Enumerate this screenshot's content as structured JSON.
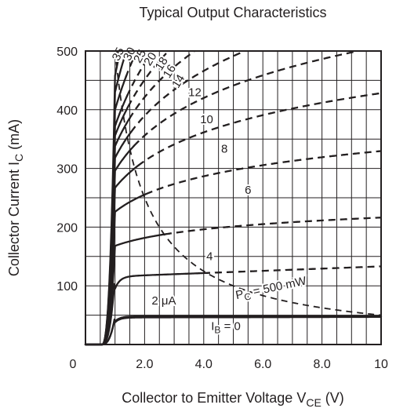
{
  "chart_data": {
    "type": "line",
    "title": "Typical Output Characteristics",
    "xlabel": {
      "main": "Collector to Emitter Voltage  V",
      "sub": "CE",
      "unit": "  (V)"
    },
    "ylabel": {
      "main": "Collector Current  I",
      "sub": "C",
      "unit": "  (mA)"
    },
    "xlim": [
      0,
      10
    ],
    "ylim": [
      0,
      500
    ],
    "x_ticks": [
      {
        "v": 0,
        "label": "0"
      },
      {
        "v": 2,
        "label": "2.0"
      },
      {
        "v": 4,
        "label": "4.0"
      },
      {
        "v": 6,
        "label": "6.0"
      },
      {
        "v": 8,
        "label": "8.0"
      },
      {
        "v": 10,
        "label": "10"
      }
    ],
    "y_ticks": [
      {
        "v": 100,
        "label": "100"
      },
      {
        "v": 200,
        "label": "200"
      },
      {
        "v": 300,
        "label": "300"
      },
      {
        "v": 400,
        "label": "400"
      },
      {
        "v": 500,
        "label": "500"
      }
    ],
    "grid": true,
    "grid_minor_x": 0.5,
    "grid_minor_y": 50,
    "series": [
      {
        "name": "0",
        "sat": 48,
        "slope": 0.0,
        "dash_from": null,
        "label": {
          "x": 4.75,
          "y": 25,
          "rot": 0,
          "main": "I",
          "sub": "B",
          "rest": " = 0"
        }
      },
      {
        "name": "2",
        "sat": 46,
        "slope": 0.1,
        "dash_from": null,
        "label": {
          "x": 2.65,
          "y": 68,
          "rot": 0,
          "main": "2 μA",
          "sub": "",
          "rest": ""
        }
      },
      {
        "name": "4",
        "sat": 116,
        "slope": 1.9,
        "dash_from": 4.0,
        "label": {
          "x": 4.2,
          "y": 144,
          "rot": 0,
          "main": "4",
          "sub": "",
          "rest": ""
        }
      },
      {
        "name": "6",
        "sat": 168,
        "slope": 0,
        "dash_from": 2.7,
        "shape": "log",
        "logk": 41,
        "label": {
          "x": 5.5,
          "y": 257,
          "rot": 0,
          "main": "6",
          "sub": "",
          "rest": ""
        }
      },
      {
        "name": "8",
        "sat": 226,
        "slope": 0,
        "dash_from": 2.05,
        "shape": "log",
        "logk": 88,
        "label": {
          "x": 4.7,
          "y": 327,
          "rot": 0,
          "main": "8",
          "sub": "",
          "rest": ""
        }
      },
      {
        "name": "10",
        "sat": 267,
        "slope": 0,
        "dash_from": 1.8,
        "shape": "log",
        "logk": 137,
        "label": {
          "x": 4.1,
          "y": 377,
          "rot": 0,
          "main": "10",
          "sub": "",
          "rest": ""
        }
      },
      {
        "name": "12",
        "sat": 296,
        "slope": 0,
        "dash_from": 1.65,
        "shape": "log",
        "logk": 180,
        "label": {
          "x": 3.7,
          "y": 423,
          "rot": 0,
          "main": "12",
          "sub": "",
          "rest": ""
        }
      },
      {
        "name": "14",
        "sat": 318,
        "slope": 0,
        "dash_from": 1.55,
        "shape": "log",
        "logk": 215,
        "label": {
          "x": 3.25,
          "y": 445,
          "rot": 58,
          "main": "14",
          "sub": "",
          "rest": ""
        }
      },
      {
        "name": "16",
        "sat": 338,
        "slope": 0,
        "dash_from": 1.5,
        "shape": "log",
        "logk": 250,
        "label": {
          "x": 2.95,
          "y": 462,
          "rot": 58,
          "main": "16",
          "sub": "",
          "rest": ""
        }
      },
      {
        "name": "18",
        "sat": 356,
        "slope": 0,
        "dash_from": 1.45,
        "shape": "log",
        "logk": 285,
        "label": {
          "x": 2.68,
          "y": 475,
          "rot": 58,
          "main": "18",
          "sub": "",
          "rest": ""
        }
      },
      {
        "name": "20",
        "sat": 372,
        "slope": 0,
        "dash_from": 1.42,
        "shape": "log",
        "logk": 320,
        "label": {
          "x": 2.3,
          "y": 483,
          "rot": 58,
          "main": "20",
          "sub": "",
          "rest": ""
        }
      },
      {
        "name": "25",
        "sat": 400,
        "slope": 0,
        "dash_from": 1.38,
        "shape": "log",
        "logk": 380,
        "label": {
          "x": 1.95,
          "y": 488,
          "rot": 60,
          "main": "25",
          "sub": "",
          "rest": ""
        }
      },
      {
        "name": "30",
        "sat": 430,
        "slope": 0,
        "dash_from": 1.35,
        "shape": "log",
        "logk": 460,
        "label": {
          "x": 1.6,
          "y": 492,
          "rot": 62,
          "main": "30",
          "sub": "",
          "rest": ""
        }
      },
      {
        "name": "35",
        "sat": 458,
        "slope": 0,
        "dash_from": 1.32,
        "shape": "log",
        "logk": 560,
        "label": {
          "x": 1.22,
          "y": 492,
          "rot": 64,
          "main": "35",
          "sub": "",
          "rest": ""
        }
      }
    ],
    "power_curve": {
      "name": "P_C = 500 mW",
      "power_mw": 500,
      "label": {
        "x": 6.3,
        "y": 90,
        "rot": 12,
        "main": "P",
        "sub": "C",
        "rest": " = 500 mW"
      }
    }
  }
}
